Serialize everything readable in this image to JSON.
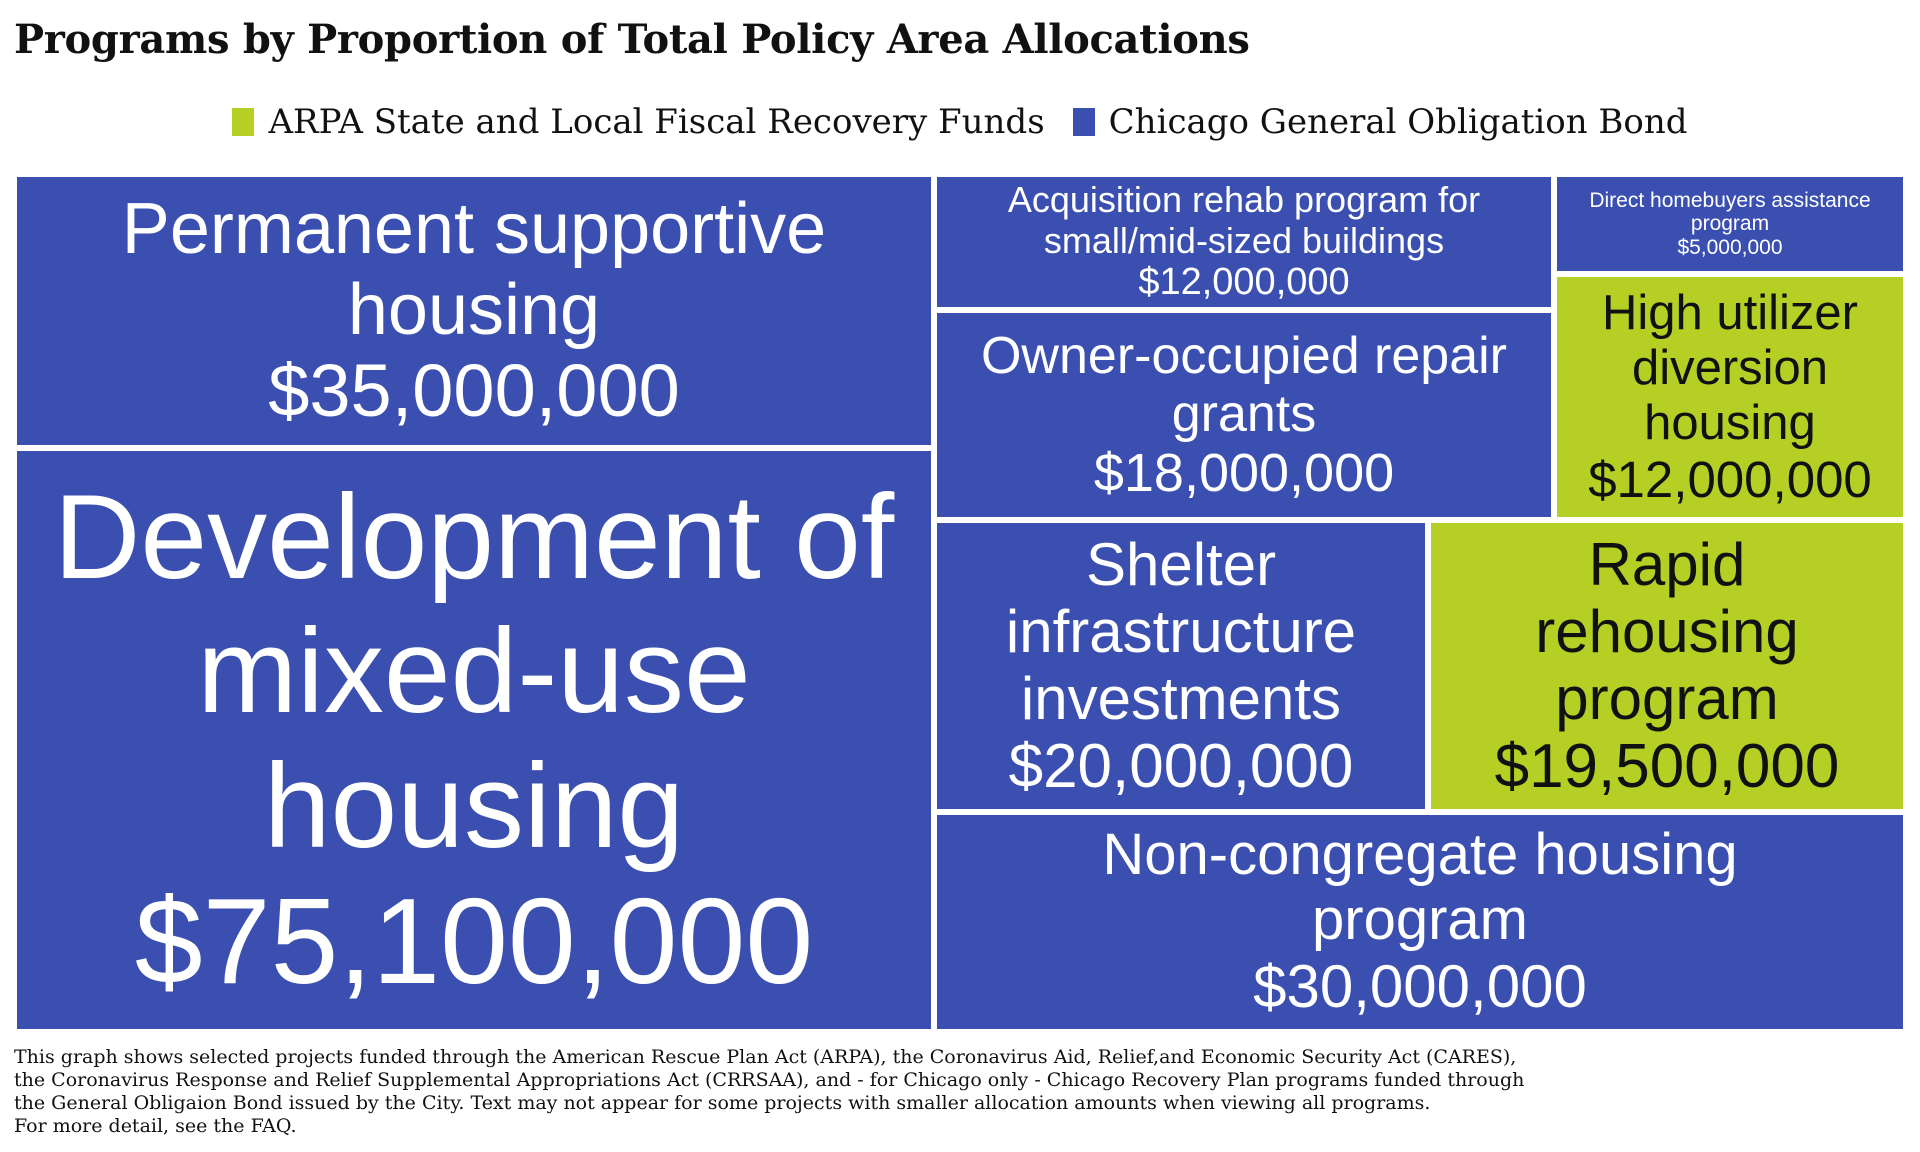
{
  "title": "Programs by Proportion of Total Policy Area Allocations",
  "legend": [
    {
      "label": "ARPA State and Local Fiscal Recovery Funds",
      "color": "#b5cf24"
    },
    {
      "label": "Chicago General Obligation Bond",
      "color": "#3a4fb0"
    }
  ],
  "chart_data": {
    "type": "treemap",
    "title": "Programs by Proportion of Total Policy Area Allocations",
    "colors": {
      "ARPA State and Local Fiscal Recovery Funds": "#b5cf24",
      "Chicago General Obligation Bond": "#3a4fb0"
    },
    "items": [
      {
        "label": "Development of mixed-use housing",
        "value_text": "$75,100,000",
        "value": 75100000,
        "fund": "Chicago General Obligation Bond"
      },
      {
        "label": "Permanent supportive housing",
        "value_text": "$35,000,000",
        "value": 35000000,
        "fund": "Chicago General Obligation Bond"
      },
      {
        "label": "Non-congregate housing program",
        "value_text": "$30,000,000",
        "value": 30000000,
        "fund": "Chicago General Obligation Bond"
      },
      {
        "label": "Shelter infrastructure investments",
        "value_text": "$20,000,000",
        "value": 20000000,
        "fund": "Chicago General Obligation Bond"
      },
      {
        "label": "Rapid rehousing program",
        "value_text": "$19,500,000",
        "value": 19500000,
        "fund": "ARPA State and Local Fiscal Recovery Funds"
      },
      {
        "label": "Owner-occupied repair grants",
        "value_text": "$18,000,000",
        "value": 18000000,
        "fund": "Chicago General Obligation Bond"
      },
      {
        "label": "Acquisition rehab program for small/mid-sized buildings",
        "value_text": "$12,000,000",
        "value": 12000000,
        "fund": "Chicago General Obligation Bond"
      },
      {
        "label": "High utilizer diversion housing",
        "value_text": "$12,000,000",
        "value": 12000000,
        "fund": "ARPA State and Local Fiscal Recovery Funds"
      },
      {
        "label": "Direct homebuyers assistance program",
        "value_text": "$5,000,000",
        "value": 5000000,
        "fund": "Chicago General Obligation Bond"
      }
    ]
  },
  "footnote": [
    "This graph shows selected projects funded through the American Rescue Plan Act (ARPA), the Coronavirus Aid, Relief,and Economic Security Act (CARES),",
    "the Coronavirus Response and Relief Supplemental Appropriations Act (CRRSAA), and - for Chicago only - Chicago Recovery Plan programs funded through",
    "the General Obligaion Bond issued by the City. Text may not appear for some projects with smaller allocation amounts when viewing all programs.",
    "For more detail, see the FAQ."
  ]
}
